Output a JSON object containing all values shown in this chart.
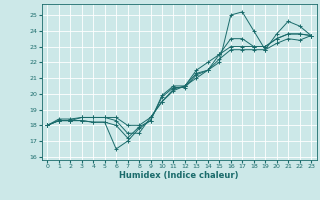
{
  "title": "",
  "xlabel": "Humidex (Indice chaleur)",
  "bg_color": "#cce8e8",
  "grid_color": "#ffffff",
  "line_color": "#1a6b6b",
  "xlim": [
    -0.5,
    23.5
  ],
  "ylim": [
    15.8,
    25.7
  ],
  "yticks": [
    16,
    17,
    18,
    19,
    20,
    21,
    22,
    23,
    24,
    25
  ],
  "xticks": [
    0,
    1,
    2,
    3,
    4,
    5,
    6,
    7,
    8,
    9,
    10,
    11,
    12,
    13,
    14,
    15,
    16,
    17,
    18,
    19,
    20,
    21,
    22,
    23
  ],
  "series": [
    [
      18.0,
      18.3,
      18.3,
      18.3,
      18.2,
      18.2,
      18.0,
      17.2,
      17.9,
      18.3,
      19.9,
      20.5,
      20.5,
      21.0,
      21.5,
      22.0,
      25.0,
      25.2,
      24.0,
      22.8,
      23.8,
      24.6,
      24.3,
      23.7
    ],
    [
      18.0,
      18.3,
      18.3,
      18.3,
      18.2,
      18.2,
      16.5,
      17.0,
      17.8,
      18.3,
      19.8,
      20.4,
      20.4,
      21.2,
      21.5,
      22.2,
      22.8,
      22.8,
      22.8,
      22.8,
      23.2,
      23.5,
      23.4,
      23.7
    ],
    [
      18.0,
      18.3,
      18.3,
      18.5,
      18.5,
      18.5,
      18.5,
      18.0,
      18.0,
      18.5,
      19.5,
      20.2,
      20.5,
      21.5,
      22.0,
      22.5,
      23.5,
      23.5,
      23.0,
      23.0,
      23.5,
      23.8,
      23.8,
      23.7
    ],
    [
      18.0,
      18.4,
      18.4,
      18.5,
      18.5,
      18.5,
      18.3,
      17.5,
      17.5,
      18.5,
      19.5,
      20.3,
      20.5,
      21.3,
      21.5,
      22.5,
      23.0,
      23.0,
      23.0,
      23.0,
      23.5,
      23.8,
      23.8,
      23.7
    ]
  ]
}
